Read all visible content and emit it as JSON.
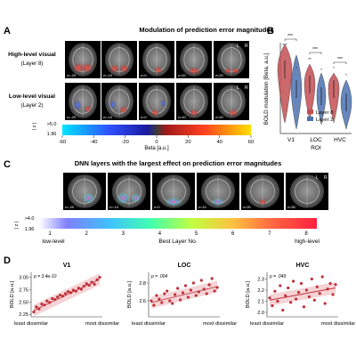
{
  "panelA": {
    "letter": "A",
    "title": "Modulation of prediction error magnitudes",
    "row1_label": "High-level visual",
    "row1_sub": "(Layer 8)",
    "row2_label": "Low-level visual",
    "row2_sub": "(Layer 2)",
    "slice_labels": [
      "z=-20",
      "z=-10",
      "z=0",
      "z=10",
      "z=20"
    ],
    "side_L": "L",
    "side_R": "R",
    "z_label": "| z |",
    "z_thresh": ">5.0",
    "z_base": "1.96",
    "colorbar_ticks": [
      "-60",
      "-40",
      "-20",
      "0",
      "20",
      "40",
      "60"
    ],
    "colorbar_label": "Beta [a.u.]"
  },
  "panelB": {
    "letter": "B",
    "ylabel": "BOLD modulation [Beta, a.u.]",
    "xlabel": "ROI",
    "categories": [
      "V1",
      "LOC",
      "HVC"
    ],
    "legend": [
      "Layer 8",
      "Layer 2"
    ],
    "colors": {
      "layer8": "#c44e52",
      "layer2": "#4c72b0"
    },
    "sig": [
      "***",
      "***",
      "***"
    ],
    "star_marks": [
      "***",
      "*",
      "**",
      "*",
      "*",
      "*"
    ]
  },
  "panelC": {
    "letter": "C",
    "title": "DNN layers with the largest effect on prediction error magnitudes",
    "slice_labels": [
      "z=-20",
      "z=-10",
      "z=0",
      "z=10",
      "z=20",
      "z=30"
    ],
    "side_L": "L",
    "side_R": "R",
    "z_label": "| z |",
    "z_thresh": ">4.0",
    "z_base": "1.96",
    "colorbar_ticks": [
      "1",
      "2",
      "3",
      "4",
      "5",
      "6",
      "7",
      "8"
    ],
    "left_label": "low-level",
    "center_label": "Best Layer No.",
    "right_label": "high-level"
  },
  "panelD": {
    "letter": "D",
    "x_left": "least dissimilar",
    "x_right": "most dissimilar",
    "ylabel": "BOLD [a.u.]"
  },
  "chart_data": [
    {
      "type": "scatter",
      "title": "V1",
      "annotation": "p = 3.4e-10",
      "xlabel": "least dissimilar → most dissimilar",
      "ylabel": "BOLD [a.u.]",
      "yticks": [
        "2.25",
        "2.50",
        "2.75",
        "3.00"
      ],
      "ylim": [
        2.2,
        3.1
      ],
      "x": [
        1,
        2,
        3,
        4,
        5,
        6,
        7,
        8,
        9,
        10,
        11,
        12,
        13,
        14,
        15,
        16,
        17,
        18,
        19,
        20,
        21,
        22,
        23,
        24,
        25,
        26
      ],
      "y": [
        2.3,
        2.4,
        2.36,
        2.46,
        2.44,
        2.52,
        2.49,
        2.57,
        2.55,
        2.6,
        2.64,
        2.62,
        2.67,
        2.71,
        2.69,
        2.74,
        2.72,
        2.78,
        2.76,
        2.82,
        2.87,
        2.84,
        2.9,
        2.86,
        2.95,
        3.0
      ],
      "fit": [
        2.33,
        2.96
      ]
    },
    {
      "type": "scatter",
      "title": "LOC",
      "annotation": "p = .004",
      "xlabel": "least dissimilar → most dissimilar",
      "ylabel": "BOLD [a.u.]",
      "yticks": [
        "2.6",
        "2.8"
      ],
      "ylim": [
        2.42,
        2.92
      ],
      "x": [
        1,
        2,
        3,
        4,
        5,
        6,
        7,
        8,
        9,
        10,
        11,
        12,
        13,
        14,
        15,
        16,
        17,
        18,
        19,
        20,
        21,
        22,
        23,
        24,
        25,
        26
      ],
      "y": [
        2.6,
        2.55,
        2.66,
        2.62,
        2.58,
        2.68,
        2.71,
        2.6,
        2.57,
        2.67,
        2.74,
        2.61,
        2.69,
        2.77,
        2.64,
        2.72,
        2.8,
        2.66,
        2.7,
        2.83,
        2.73,
        2.68,
        2.78,
        2.85,
        2.71,
        2.75
      ],
      "fit": [
        2.58,
        2.76
      ]
    },
    {
      "type": "scatter",
      "title": "HVC",
      "annotation": "p = .049",
      "xlabel": "least dissimilar → most dissimilar",
      "ylabel": "BOLD [a.u.]",
      "yticks": [
        "2.0",
        "2.1",
        "2.2",
        "2.3"
      ],
      "ylim": [
        1.96,
        2.36
      ],
      "x": [
        1,
        2,
        3,
        4,
        5,
        6,
        7,
        8,
        9,
        10,
        11,
        12,
        13,
        14,
        15,
        16,
        17,
        18,
        19,
        20,
        21,
        22,
        23,
        24,
        25,
        26
      ],
      "y": [
        2.13,
        2.06,
        2.19,
        2.1,
        2.24,
        2.02,
        2.15,
        2.22,
        2.09,
        2.28,
        2.12,
        2.18,
        2.26,
        2.05,
        2.2,
        2.14,
        2.3,
        2.11,
        2.23,
        2.17,
        2.32,
        2.08,
        2.21,
        2.26,
        2.16,
        2.25
      ],
      "fit": [
        2.11,
        2.22
      ]
    }
  ]
}
